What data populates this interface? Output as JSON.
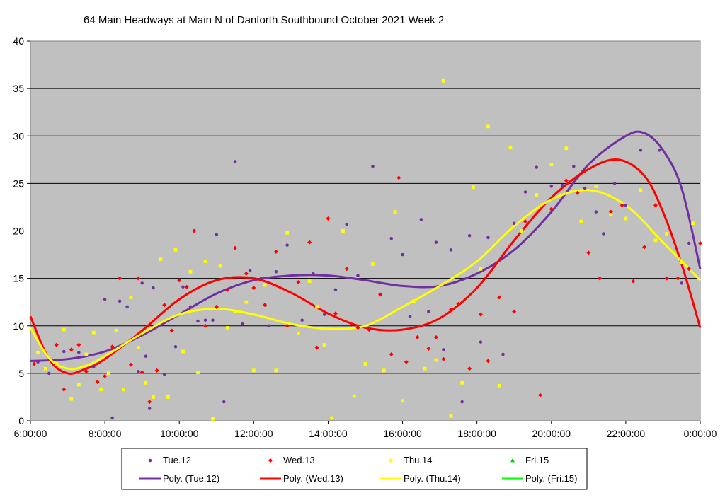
{
  "chart_data": {
    "type": "scatter",
    "title": "64 Main Headways at Main N of Danforth Southbound October 2021  Week 2",
    "xlabel": "",
    "ylabel": "",
    "ylim": [
      0,
      40
    ],
    "xlim_hours": [
      6,
      24
    ],
    "y_ticks": [
      "0",
      "5",
      "10",
      "15",
      "20",
      "25",
      "30",
      "35",
      "40"
    ],
    "x_ticks": [
      "6:00:00",
      "8:00:00",
      "10:00:00",
      "12:00:00",
      "14:00:00",
      "16:00:00",
      "18:00:00",
      "20:00:00",
      "22:00:00",
      "0:00:00"
    ],
    "grid": true,
    "plot_background": "#c0c0c0",
    "legend_position": "bottom",
    "series": [
      {
        "name": "Tue.12",
        "color": "#7030a0",
        "marker": "circle",
        "x": [
          6.2,
          6.5,
          6.9,
          7.3,
          7.7,
          8.0,
          8.2,
          8.4,
          8.6,
          8.9,
          9.0,
          9.1,
          9.2,
          9.3,
          9.6,
          9.9,
          10.1,
          10.3,
          10.5,
          10.7,
          10.9,
          11.0,
          11.2,
          11.5,
          11.7,
          11.9,
          12.2,
          12.4,
          12.6,
          12.9,
          13.3,
          13.6,
          13.9,
          14.2,
          14.5,
          14.8,
          15.2,
          15.4,
          15.7,
          16.0,
          16.2,
          16.5,
          16.7,
          16.9,
          17.1,
          17.3,
          17.6,
          17.8,
          18.1,
          18.3,
          18.7,
          19.0,
          19.3,
          19.6,
          20.0,
          20.3,
          20.6,
          20.9,
          21.2,
          21.4,
          21.7,
          22.0,
          22.4,
          22.9,
          23.5,
          23.7
        ],
        "y": [
          6.2,
          5.0,
          7.3,
          7.2,
          5.7,
          12.8,
          0.3,
          12.6,
          12.0,
          5.2,
          14.5,
          6.8,
          1.3,
          14.0,
          4.9,
          7.8,
          14.1,
          12.0,
          10.5,
          10.6,
          10.6,
          19.6,
          2.0,
          27.3,
          10.2,
          15.8,
          15.0,
          10.0,
          15.7,
          18.5,
          10.6,
          15.5,
          11.2,
          13.8,
          20.7,
          15.3,
          26.8,
          13.3,
          19.2,
          17.5,
          11.0,
          21.2,
          11.5,
          18.8,
          7.5,
          18.0,
          2.0,
          19.5,
          8.3,
          19.3,
          7.0,
          20.8,
          24.1,
          26.7,
          24.7,
          24.8,
          26.8,
          24.5,
          22.0,
          19.7,
          25.0,
          22.7,
          28.5,
          28.5,
          14.5,
          18.7
        ]
      },
      {
        "name": "Wed.13",
        "color": "#ff0000",
        "marker": "diamond",
        "x": [
          6.1,
          6.4,
          6.7,
          6.9,
          7.1,
          7.3,
          7.5,
          7.8,
          8.0,
          8.2,
          8.4,
          8.7,
          8.9,
          9.0,
          9.2,
          9.4,
          9.6,
          9.8,
          10.0,
          10.2,
          10.4,
          10.7,
          11.0,
          11.3,
          11.5,
          11.8,
          12.0,
          12.3,
          12.6,
          12.9,
          13.2,
          13.5,
          13.7,
          14.0,
          14.2,
          14.5,
          14.8,
          15.1,
          15.4,
          15.7,
          15.9,
          16.1,
          16.4,
          16.7,
          16.9,
          17.1,
          17.3,
          17.5,
          17.8,
          18.1,
          18.3,
          18.6,
          19.0,
          19.3,
          19.7,
          20.0,
          20.4,
          20.7,
          21.0,
          21.3,
          21.6,
          21.9,
          22.2,
          22.5,
          22.8,
          23.1,
          23.4,
          23.7,
          24.0
        ],
        "y": [
          6.0,
          5.5,
          8.0,
          3.3,
          7.5,
          8.0,
          5.2,
          4.1,
          4.7,
          7.8,
          15.0,
          5.9,
          15.0,
          5.1,
          2.0,
          5.3,
          12.2,
          9.5,
          14.8,
          14.1,
          20.0,
          10.0,
          12.0,
          13.8,
          18.2,
          15.5,
          14.0,
          12.2,
          17.8,
          10.0,
          14.6,
          18.8,
          7.7,
          21.3,
          11.3,
          16.0,
          9.8,
          9.6,
          13.3,
          7.0,
          25.6,
          6.2,
          8.8,
          7.6,
          8.8,
          6.5,
          11.7,
          12.3,
          5.5,
          11.2,
          6.3,
          13.0,
          11.5,
          21.0,
          2.7,
          22.3,
          25.3,
          24.0,
          17.7,
          15.0,
          22.0,
          22.7,
          14.7,
          18.3,
          22.7,
          15.0,
          15.0,
          16.0,
          18.7
        ]
      },
      {
        "name": "Thu.14",
        "color": "#ffff00",
        "marker": "square",
        "x": [
          6.2,
          6.4,
          6.7,
          6.9,
          7.1,
          7.3,
          7.5,
          7.7,
          7.9,
          8.1,
          8.3,
          8.5,
          8.7,
          8.9,
          9.1,
          9.3,
          9.5,
          9.7,
          9.9,
          10.1,
          10.3,
          10.5,
          10.7,
          10.9,
          11.1,
          11.3,
          11.5,
          11.8,
          12.0,
          12.3,
          12.6,
          12.9,
          13.2,
          13.5,
          13.7,
          13.9,
          14.1,
          14.4,
          14.7,
          15.0,
          15.2,
          15.5,
          15.8,
          16.0,
          16.3,
          16.6,
          16.9,
          17.1,
          17.3,
          17.6,
          17.9,
          18.1,
          18.3,
          18.6,
          18.9,
          19.2,
          19.6,
          20.0,
          20.4,
          20.8,
          21.2,
          21.6,
          22.0,
          22.4,
          22.8,
          23.1,
          23.5,
          23.8
        ],
        "y": [
          7.2,
          5.5,
          6.0,
          9.6,
          2.3,
          3.8,
          7.0,
          9.3,
          3.3,
          5.0,
          9.5,
          3.3,
          13.0,
          7.7,
          4.0,
          2.5,
          17.0,
          2.5,
          18.0,
          7.3,
          15.7,
          5.1,
          16.8,
          0.2,
          16.3,
          9.8,
          11.5,
          12.5,
          5.3,
          14.3,
          5.3,
          19.8,
          9.2,
          14.7,
          12.0,
          8.0,
          0.3,
          20.0,
          2.6,
          6.0,
          16.5,
          5.3,
          22.0,
          2.1,
          12.6,
          5.5,
          6.4,
          35.8,
          0.5,
          4.0,
          24.6,
          16.0,
          31.0,
          3.7,
          28.8,
          20.0,
          23.8,
          27.0,
          28.7,
          21.0,
          24.7,
          21.7,
          21.3,
          24.3,
          19.0,
          19.7,
          16.7,
          20.8
        ]
      },
      {
        "name": "Fri.15",
        "color": "#00d000",
        "marker": "triangle",
        "x": [],
        "y": []
      }
    ],
    "trendlines": [
      {
        "name": "Poly. (Tue.12)",
        "color": "#7030a0",
        "x": [
          6,
          7,
          8,
          9,
          10,
          11,
          12,
          13,
          14,
          15,
          16,
          17,
          18,
          19,
          20,
          21,
          22,
          22.5,
          23,
          23.5,
          24
        ],
        "y": [
          6.3,
          6.5,
          7.3,
          9.0,
          11.2,
          13.4,
          14.8,
          15.3,
          15.3,
          14.8,
          14.2,
          14.2,
          15.5,
          18.0,
          22.0,
          27.0,
          30.0,
          30.3,
          28.5,
          24.5,
          16.0
        ]
      },
      {
        "name": "Poly. (Wed.13)",
        "color": "#ff0000",
        "x": [
          6,
          6.5,
          7,
          7.5,
          8,
          9,
          10,
          11,
          12,
          13,
          14,
          15,
          16,
          17,
          18,
          19,
          20,
          21,
          21.8,
          22.5,
          23,
          23.5,
          24
        ],
        "y": [
          11.0,
          6.5,
          5.0,
          5.5,
          6.5,
          9.5,
          12.8,
          14.8,
          15.0,
          13.5,
          11.3,
          9.8,
          9.6,
          10.8,
          14.0,
          19.0,
          23.5,
          26.5,
          27.5,
          25.8,
          22.0,
          16.5,
          9.8
        ]
      },
      {
        "name": "Poly. (Thu.14)",
        "color": "#ffff00",
        "x": [
          6,
          6.5,
          7,
          7.5,
          8,
          9,
          10,
          11,
          12,
          13,
          14,
          15,
          16,
          17,
          18,
          19,
          20,
          21,
          22,
          23,
          24
        ],
        "y": [
          9.8,
          6.6,
          5.5,
          5.8,
          6.8,
          9.2,
          11.2,
          11.8,
          11.2,
          10.2,
          9.7,
          10.0,
          12.0,
          14.2,
          16.8,
          20.5,
          23.3,
          24.3,
          22.7,
          18.8,
          14.8
        ]
      },
      {
        "name": "Poly. (Fri.15)",
        "color": "#00ff00",
        "x": [],
        "y": []
      }
    ]
  }
}
